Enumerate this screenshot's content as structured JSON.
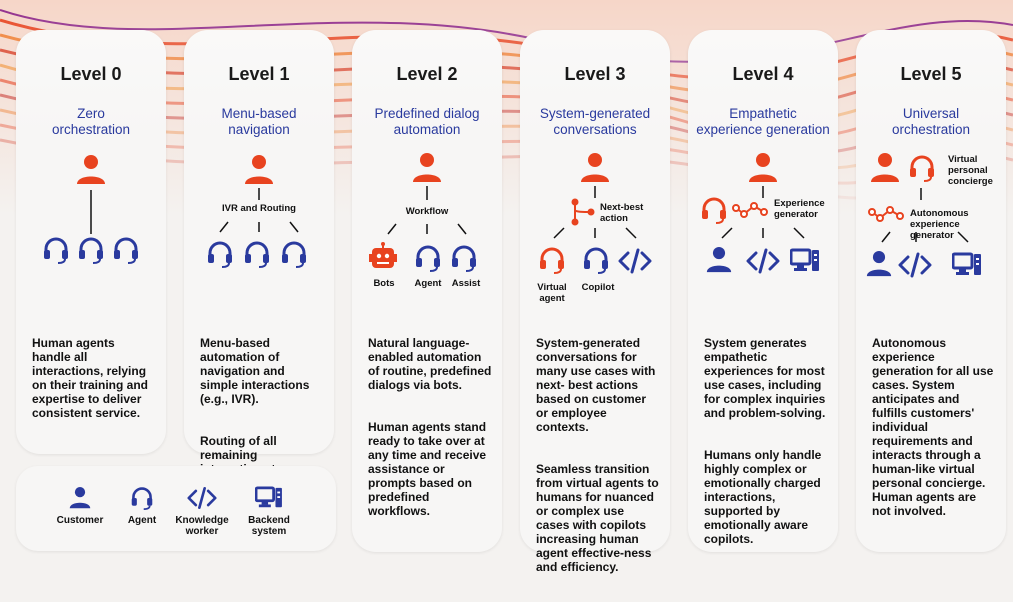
{
  "colors": {
    "orange": "#e8431f",
    "blue": "#2a3a9e",
    "text": "#111111"
  },
  "levels": [
    {
      "title": "Level 0",
      "subtitle": "Zero orchestration",
      "description": [
        "Human agents handle all interactions, relying on their training and expertise to deliver consistent service."
      ]
    },
    {
      "title": "Level 1",
      "subtitle": "Menu-based navigation",
      "diagram_label": "IVR and Routing",
      "description": [
        "Menu-based automation of navigation and simple interactions (e.g., IVR).",
        "Routing of all remaining interactions to human agents."
      ]
    },
    {
      "title": "Level 2",
      "subtitle": "Predefined dialog automation",
      "diagram_label": "Workflow",
      "icon_labels": [
        "Bots",
        "Agent",
        "Assist"
      ],
      "description": [
        "Natural language-enabled automation of routine, predefined dialogs via bots.",
        "Human agents stand ready to take over at any time and receive assistance or prompts based on predefined workflows."
      ]
    },
    {
      "title": "Level 3",
      "subtitle": "System-generated conversations",
      "diagram_label": "Next-best action",
      "icon_labels": [
        "Virtual agent",
        "Copilot"
      ],
      "description": [
        "System-generated conversations for many use cases with next- best actions based on customer or employee contexts.",
        "Seamless transition from virtual agents to humans for nuanced or complex use cases with copilots increasing human agent effective-ness and efficiency."
      ]
    },
    {
      "title": "Level 4",
      "subtitle": "Empathetic experience generation",
      "diagram_label": "Experience generator",
      "description": [
        "System generates empathetic experiences for most use cases,  including for complex inquiries and problem-solving.",
        "Humans only handle highly complex or emotionally charged interactions, supported by emotionally aware copilots."
      ]
    },
    {
      "title": "Level 5",
      "subtitle": "Universal orchestration",
      "diagram_label_top": "Virtual personal concierge",
      "diagram_label": "Autonomous experience generator",
      "description": [
        "Autonomous experience generation for all use cases. System anticipates and fulfills customers' individual requirements and interacts through a human-like virtual personal concierge. Human agents are not involved."
      ]
    }
  ],
  "legend": {
    "customer": "Customer",
    "agent": "Agent",
    "knowledge_worker": "Knowledge worker",
    "backend_system": "Backend system"
  }
}
